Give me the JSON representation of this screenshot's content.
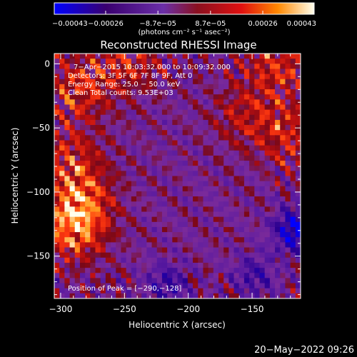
{
  "chart_data": {
    "type": "heatmap",
    "title": "Reconstructed RHESSI Image",
    "xlabel": "Heliocentric X (arcsec)",
    "ylabel": "Heliocentric Y (arcsec)",
    "xlim": [
      -305,
      -112
    ],
    "ylim": [
      -183,
      8
    ],
    "xticks": [
      -300,
      -250,
      -200,
      -150
    ],
    "xtick_labels": [
      "−300",
      "−250",
      "−200",
      "−150"
    ],
    "yticks": [
      0,
      -50,
      -100,
      -150
    ],
    "ytick_labels": [
      "0",
      "−50",
      "−100",
      "−150"
    ],
    "colorbar": {
      "min": -0.00043,
      "max": 0.00043,
      "tick_values": [
        -0.00043,
        -0.00026,
        -8.7e-05,
        8.7e-05,
        0.00026,
        0.00043
      ],
      "tick_labels": [
        "−0.00043",
        "−0.00026",
        "−8.7e−05",
        "8.7e−05",
        "0.00026",
        "0.00043"
      ],
      "units": "(photons cm⁻² s⁻¹ asec⁻²)",
      "colors": [
        "#0000ff",
        "#3a0070",
        "#6b2fa8",
        "#8a1020",
        "#e01010",
        "#ff8800",
        "#ffffee"
      ]
    },
    "annotations": [
      "7−Apr−2015 10:03:32.000 to 10:09:32.000",
      "Detectors: 3F 5F 6F 7F 8F 9F, Att 0",
      "Energy Range: 25.0 − 50.0 keV",
      "Clean     Total counts: 9.53E+03"
    ],
    "peak_label": "Position of Peak = [−290,−128]",
    "peak": [
      -290,
      -128
    ],
    "hot_regions": [
      {
        "x": -290,
        "y": -128,
        "strength": 1.0
      },
      {
        "x": -283,
        "y": -105,
        "strength": 0.7
      },
      {
        "x": -293,
        "y": -75,
        "strength": 0.6
      },
      {
        "x": -285,
        "y": -20,
        "strength": 0.7
      },
      {
        "x": -247,
        "y": 3,
        "strength": 0.6
      },
      {
        "x": -130,
        "y": 0,
        "strength": 0.7
      },
      {
        "x": -120,
        "y": -55,
        "strength": 0.6
      },
      {
        "x": -155,
        "y": -40,
        "strength": 0.5
      }
    ],
    "cold_regions": [
      {
        "x": -116,
        "y": -130,
        "strength": 1.0
      },
      {
        "x": -216,
        "y": -172,
        "strength": 0.5
      },
      {
        "x": -148,
        "y": -165,
        "strength": 0.45
      }
    ]
  },
  "timestamp": "20−May−2022 09:26"
}
